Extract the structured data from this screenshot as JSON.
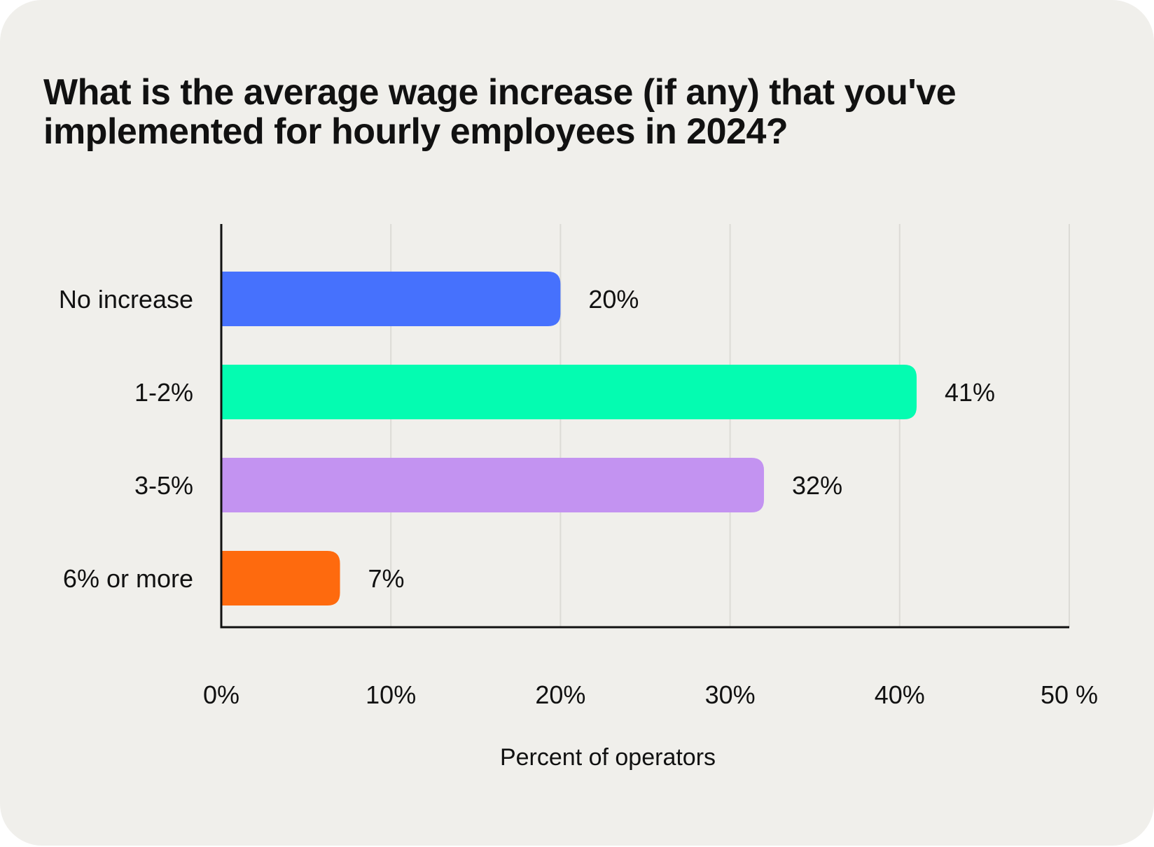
{
  "chart_data": {
    "type": "bar",
    "orientation": "horizontal",
    "title": "What is the average wage increase (if any) that you've implemented for hourly employees in 2024?",
    "title_lines": [
      "What is the average wage increase (if any) that you've",
      "implemented for hourly employees in 2024?"
    ],
    "categories": [
      "No increase",
      "1-2%",
      "3-5%",
      "6% or more"
    ],
    "values": [
      20,
      41,
      32,
      7
    ],
    "value_labels": [
      "20%",
      "41%",
      "32%",
      "7%"
    ],
    "colors": [
      "#4671fd",
      "#04fcb1",
      "#c393f1",
      "#fe6a0e"
    ],
    "xlabel": "Percent of operators",
    "ylabel": "",
    "xlim": [
      0,
      50
    ],
    "x_ticks": [
      0,
      10,
      20,
      30,
      40,
      50
    ],
    "x_tick_labels": [
      "0%",
      "10%",
      "20%",
      "30%",
      "40%",
      "50 %"
    ],
    "grid": true
  }
}
